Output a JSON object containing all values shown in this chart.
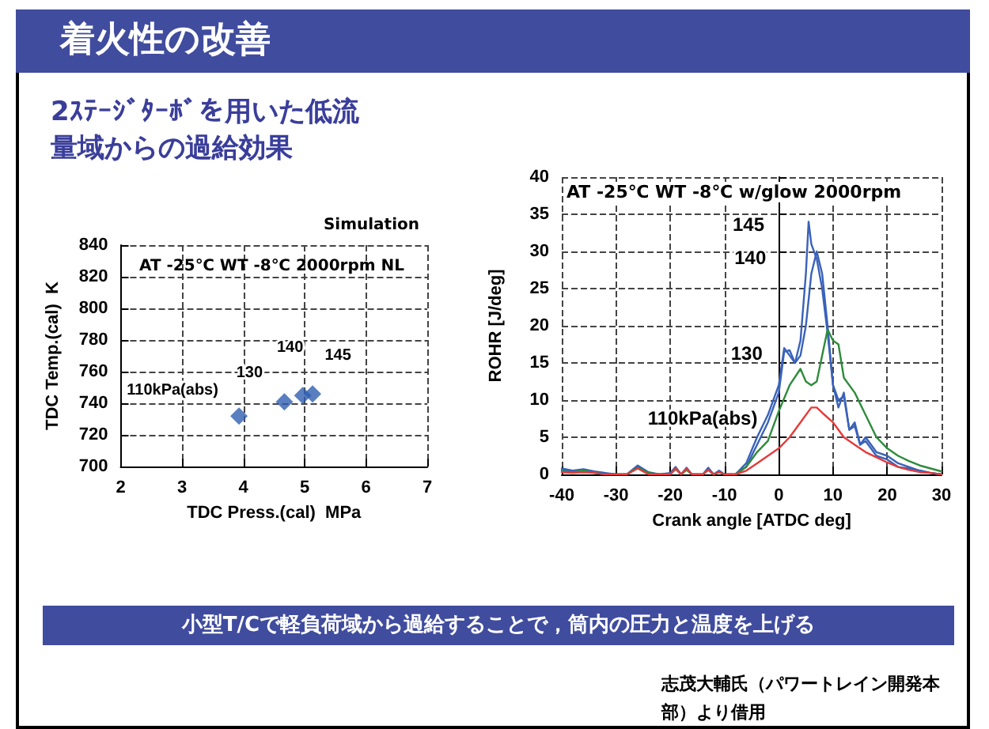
{
  "chart_data": [
    {
      "type": "scatter",
      "title": "着火性の改善",
      "subtitle": "2ｽﾃｰｼﾞﾀｰﾎﾞを用いた低流量域からの過給効果",
      "xlabel": "TDC Press.(cal)  MPa",
      "ylabel": "TDC Temp.(cal)  K",
      "x": [
        3.93,
        4.67,
        4.97,
        5.13
      ],
      "values": [
        732,
        741,
        745,
        746
      ],
      "color": "#2f5fb0",
      "xlim": [
        2,
        7
      ],
      "xticks": [
        2,
        3,
        4,
        5,
        6,
        7
      ],
      "ylim": [
        700,
        840
      ],
      "yticks": [
        700,
        720,
        740,
        760,
        780,
        800,
        820,
        840
      ],
      "grid": true,
      "marker": "diamond",
      "annotations": [
        "Simulation",
        "AT -25℃  WT -8℃  2000rpm  NL",
        "小型T/Cで軽負荷域から過給することで，筒内の圧力と温度を上げる",
        "志茂大輔氏（パワートレイン開発本部）より借用",
        {
          "text": "110kPa(abs)",
          "x": 3.93,
          "y": 732
        },
        {
          "text": "130",
          "x": 4.67,
          "y": 741
        },
        {
          "text": "140",
          "x": 4.97,
          "y": 745
        },
        {
          "text": "145",
          "x": 5.13,
          "y": 746
        }
      ]
    },
    {
      "type": "line",
      "xlabel": "Crank angle [ATDC deg]",
      "ylabel": "ROHR [J/deg]",
      "xlim": [
        -40,
        30
      ],
      "xticks": [
        -40,
        -30,
        -20,
        -10,
        0,
        10,
        20,
        30
      ],
      "ylim": [
        0,
        40
      ],
      "yticks": [
        0,
        5,
        10,
        15,
        20,
        25,
        30,
        35,
        40
      ],
      "grid": true,
      "marker": "none",
      "series": [
        {
          "color": "#3a62b8",
          "x": [
            -40,
            -38,
            -36,
            -34,
            -32,
            -30,
            -28,
            -26,
            -24,
            -22,
            -20,
            -19,
            -18,
            -17,
            -16,
            -14,
            -13,
            -12,
            -11,
            -10,
            -8,
            -6,
            -4,
            -2,
            0,
            1,
            2,
            3,
            4,
            5,
            5.5,
            6,
            7,
            8,
            9,
            10,
            11,
            12,
            13,
            14,
            15,
            16,
            18,
            20,
            22,
            24,
            26,
            28,
            30
          ],
          "values": [
            0.8,
            0.5,
            0.7,
            0.4,
            0.2,
            0,
            0,
            1.2,
            0.3,
            0,
            0.2,
            1,
            0,
            0.9,
            0,
            0,
            0.9,
            0,
            0.5,
            0,
            0,
            1.5,
            5,
            8,
            12,
            17,
            16,
            15,
            18,
            27,
            34,
            31,
            29,
            25,
            19,
            12,
            10,
            10.5,
            6,
            6.5,
            4,
            4.5,
            2.5,
            2,
            1,
            0.8,
            0.5,
            0.2,
            0
          ]
        },
        {
          "color": "#3a62b8",
          "x": [
            -40,
            -38,
            -36,
            -34,
            -32,
            -30,
            -28,
            -26,
            -24,
            -22,
            -20,
            -19,
            -18,
            -17,
            -16,
            -14,
            -13,
            -12,
            -11,
            -10,
            -8,
            -6,
            -4,
            -2,
            0,
            1,
            2,
            3,
            4,
            5,
            6,
            7,
            8,
            9,
            10,
            11,
            12,
            13,
            14,
            15,
            16,
            18,
            20,
            22,
            24,
            26,
            28,
            30
          ],
          "values": [
            0.6,
            0.4,
            0.6,
            0.3,
            0.1,
            0,
            0,
            1,
            0.2,
            0,
            0.1,
            0.8,
            0,
            0.7,
            0,
            0,
            0.7,
            0,
            0.4,
            0,
            0,
            1,
            4,
            7,
            11,
            16.5,
            16.7,
            15,
            16,
            20,
            27,
            30,
            27,
            20,
            12,
            9,
            11,
            6,
            7,
            4,
            5,
            3,
            2.5,
            1.5,
            1,
            0.5,
            0.2,
            0
          ]
        },
        {
          "color": "#2e8b3c",
          "x": [
            -40,
            -38,
            -36,
            -34,
            -32,
            -30,
            -28,
            -26,
            -24,
            -22,
            -20,
            -19,
            -18,
            -17,
            -16,
            -14,
            -13,
            -12,
            -11,
            -10,
            -8,
            -6,
            -4,
            -2,
            0,
            2,
            4,
            5,
            6,
            7,
            8,
            9,
            10,
            11,
            12,
            14,
            16,
            18,
            20,
            22,
            24,
            26,
            28,
            30
          ],
          "values": [
            0.4,
            0.3,
            0.5,
            0.2,
            0,
            0,
            0,
            0.9,
            0.2,
            0,
            0,
            0.7,
            0,
            0.6,
            0,
            0,
            0.6,
            0,
            0.3,
            0,
            0,
            1,
            3,
            4.5,
            8.5,
            12,
            14.2,
            12.5,
            12,
            12.5,
            16,
            19.5,
            18,
            17.5,
            13,
            11,
            8,
            5,
            3.5,
            2.5,
            1.8,
            1.2,
            0.8,
            0.4
          ]
        },
        {
          "color": "#e53a3a",
          "x": [
            -40,
            -38,
            -36,
            -34,
            -32,
            -30,
            -28,
            -26,
            -24,
            -22,
            -20,
            -19,
            -18,
            -17,
            -16,
            -14,
            -13,
            -12,
            -11,
            -10,
            -8,
            -6,
            -4,
            -2,
            0,
            2,
            4,
            6,
            7,
            8,
            10,
            12,
            14,
            16,
            18,
            20,
            22,
            24,
            26,
            28,
            30
          ],
          "values": [
            0.3,
            0.2,
            0.3,
            0.2,
            0,
            0,
            0,
            0.8,
            0,
            0,
            0,
            0.8,
            0,
            0.8,
            0,
            0,
            0.6,
            0,
            0.3,
            0,
            0,
            0.5,
            1.5,
            2.5,
            3.5,
            5,
            7,
            9,
            9,
            8.3,
            7,
            5,
            4,
            3,
            2.3,
            1.6,
            1,
            0.6,
            0.3,
            0.2,
            0
          ]
        }
      ],
      "annotations": [
        "AT -25℃  WT -8℃  w/glow  2000rpm",
        {
          "text": "145",
          "x": 5.5,
          "y": 34
        },
        {
          "text": "140",
          "x": 7,
          "y": 30
        },
        {
          "text": "130",
          "x": 4,
          "y": 14.2
        },
        {
          "text": "110kPa(abs)",
          "x": 2,
          "y": 5
        }
      ]
    }
  ]
}
